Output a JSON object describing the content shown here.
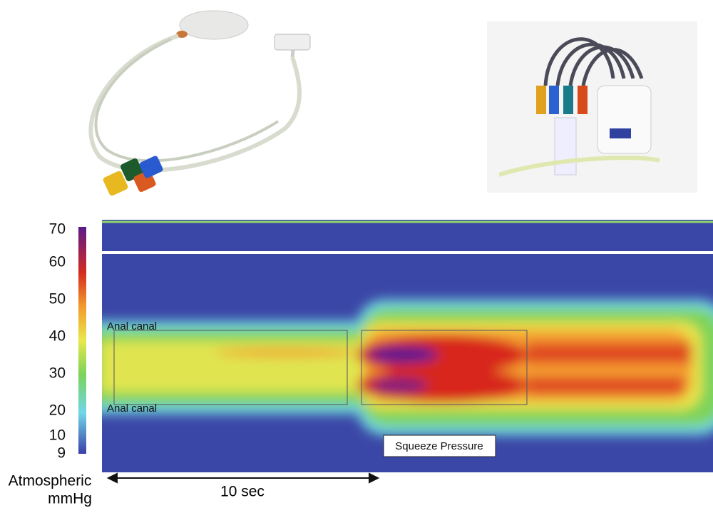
{
  "colorbar": {
    "ticks": [
      70,
      60,
      50,
      40,
      30,
      20,
      10,
      9
    ]
  },
  "annotations": {
    "top_label": "Anal canal",
    "bottom_label": "Anal canal",
    "squeeze": "Squeeze Pressure"
  },
  "axis": {
    "label_line1": "Atmospheric",
    "label_line2": "mmHg",
    "time_scale": "10 sec"
  }
}
